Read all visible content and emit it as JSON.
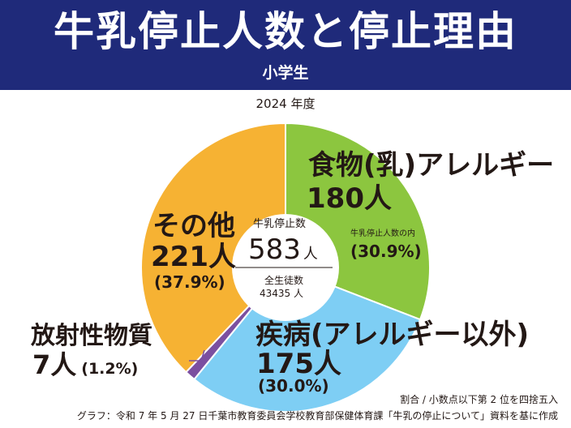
{
  "header": {
    "title": "牛乳停止人数と停止理由",
    "subtitle": "小学生"
  },
  "chart_data": {
    "type": "pie",
    "title": "牛乳停止人数と停止理由",
    "subtitle": "小学生",
    "year": "2024 年度",
    "categories": [
      "食物(乳)アレルギー",
      "疾病(アレルギー以外)",
      "放射性物質",
      "その他"
    ],
    "values": [
      180,
      175,
      7,
      221
    ],
    "percent_labels": [
      "(30.9%)",
      "(30.0%)",
      "(1.2%)",
      "(37.9%)"
    ],
    "count_labels": [
      "180人",
      "175人",
      "7人",
      "221人"
    ],
    "colors": [
      "#8cc63f",
      "#7ecef4",
      "#7b4fa0",
      "#f6b233"
    ],
    "center": {
      "stop_label": "牛乳停止数",
      "stop_value": "583",
      "stop_unit": "人",
      "total_label": "全生徒数",
      "total_value": "43435 人"
    },
    "sub_note": "牛乳停止人数の内"
  },
  "footer": {
    "rounding_note": "割合 / 小数点以下第 2 位を四捨五入",
    "source_note": "グラフ：令和 7 年 5 月 27 日千葉市教育委員会学校教育部保健体育課「牛乳の停止について」資料を基に作成"
  }
}
